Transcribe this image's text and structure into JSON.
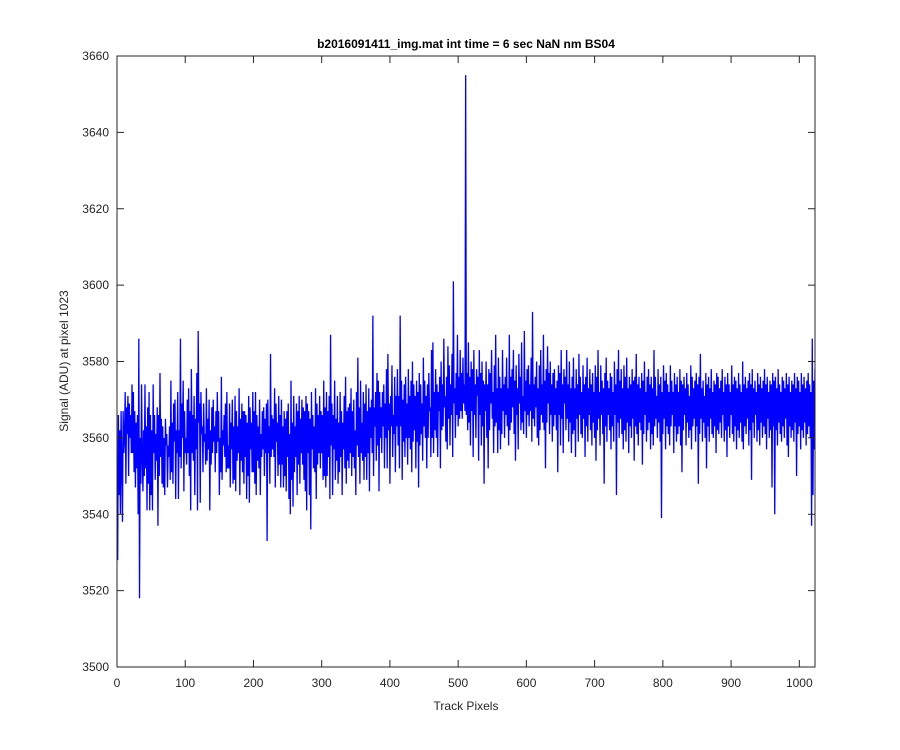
{
  "chart_data": {
    "type": "line",
    "title": "b2016091411_img.mat int time = 6 sec  NaN nm BS04",
    "xlabel": "Track Pixels",
    "ylabel": "Signal (ADU) at pixel 1023",
    "xlim": [
      0,
      1023
    ],
    "ylim": [
      3500,
      3660
    ],
    "xticks": [
      0,
      100,
      200,
      300,
      400,
      500,
      600,
      700,
      800,
      900,
      1000
    ],
    "yticks": [
      3500,
      3520,
      3540,
      3560,
      3580,
      3600,
      3620,
      3640,
      3660
    ],
    "grid": false,
    "line_color": "#0000ff",
    "series": [
      {
        "name": "",
        "x_start": 1,
        "x_step": 1,
        "y": [
          3528,
          3566,
          3545,
          3562,
          3540,
          3567,
          3553,
          3538,
          3567,
          3556,
          3560,
          3572,
          3548,
          3568,
          3561,
          3571,
          3550,
          3569,
          3560,
          3566,
          3556,
          3574,
          3556,
          3572,
          3551,
          3567,
          3547,
          3564,
          3552,
          3566,
          3540,
          3586,
          3518,
          3560,
          3548,
          3574,
          3555,
          3546,
          3562,
          3550,
          3574,
          3552,
          3563,
          3541,
          3568,
          3548,
          3572,
          3541,
          3566,
          3545,
          3562,
          3541,
          3574,
          3556,
          3566,
          3549,
          3561,
          3554,
          3568,
          3537,
          3566,
          3550,
          3577,
          3555,
          3565,
          3548,
          3563,
          3547,
          3560,
          3545,
          3565,
          3558,
          3561,
          3547,
          3558,
          3555,
          3563,
          3549,
          3575,
          3551,
          3564,
          3548,
          3569,
          3559,
          3570,
          3544,
          3562,
          3556,
          3572,
          3544,
          3562,
          3555,
          3586,
          3552,
          3569,
          3560,
          3575,
          3546,
          3567,
          3556,
          3560,
          3553,
          3570,
          3556,
          3573,
          3550,
          3567,
          3541,
          3578,
          3556,
          3566,
          3554,
          3571,
          3545,
          3565,
          3557,
          3577,
          3541,
          3588,
          3564,
          3569,
          3543,
          3572,
          3561,
          3563,
          3551,
          3569,
          3559,
          3561,
          3553,
          3573,
          3554,
          3565,
          3557,
          3570,
          3541,
          3562,
          3553,
          3568,
          3556,
          3570,
          3559,
          3563,
          3551,
          3567,
          3556,
          3572,
          3559,
          3567,
          3545,
          3560,
          3551,
          3576,
          3549,
          3562,
          3558,
          3566,
          3555,
          3569,
          3551,
          3572,
          3552,
          3558,
          3552,
          3569,
          3547,
          3564,
          3557,
          3570,
          3548,
          3563,
          3549,
          3571,
          3546,
          3567,
          3554,
          3563,
          3556,
          3573,
          3545,
          3565,
          3554,
          3569,
          3551,
          3567,
          3548,
          3567,
          3555,
          3566,
          3544,
          3564,
          3550,
          3571,
          3543,
          3568,
          3557,
          3564,
          3551,
          3572,
          3551,
          3567,
          3548,
          3572,
          3545,
          3566,
          3554,
          3563,
          3552,
          3570,
          3545,
          3561,
          3555,
          3567,
          3557,
          3568,
          3550,
          3565,
          3556,
          3569,
          3533,
          3570,
          3556,
          3563,
          3548,
          3582,
          3555,
          3566,
          3557,
          3565,
          3555,
          3573,
          3547,
          3569,
          3559,
          3564,
          3550,
          3571,
          3553,
          3566,
          3547,
          3570,
          3553,
          3563,
          3547,
          3567,
          3550,
          3565,
          3546,
          3567,
          3555,
          3569,
          3544,
          3561,
          3540,
          3575,
          3549,
          3564,
          3542,
          3571,
          3551,
          3563,
          3555,
          3569,
          3545,
          3567,
          3553,
          3571,
          3548,
          3565,
          3556,
          3570,
          3553,
          3568,
          3549,
          3567,
          3546,
          3571,
          3541,
          3569,
          3556,
          3567,
          3545,
          3565,
          3536,
          3572,
          3557,
          3566,
          3552,
          3563,
          3551,
          3573,
          3544,
          3569,
          3553,
          3566,
          3556,
          3571,
          3552,
          3567,
          3556,
          3566,
          3549,
          3575,
          3550,
          3568,
          3547,
          3572,
          3550,
          3567,
          3555,
          3571,
          3544,
          3587,
          3558,
          3569,
          3545,
          3566,
          3557,
          3575,
          3549,
          3565,
          3554,
          3571,
          3548,
          3564,
          3551,
          3572,
          3555,
          3567,
          3545,
          3564,
          3557,
          3571,
          3552,
          3576,
          3548,
          3567,
          3554,
          3568,
          3552,
          3569,
          3556,
          3573,
          3550,
          3567,
          3555,
          3570,
          3552,
          3562,
          3545,
          3572,
          3558,
          3581,
          3555,
          3568,
          3548,
          3575,
          3556,
          3564,
          3554,
          3572,
          3549,
          3569,
          3555,
          3574,
          3549,
          3567,
          3556,
          3573,
          3546,
          3568,
          3560,
          3570,
          3556,
          3592,
          3550,
          3568,
          3563,
          3572,
          3554,
          3577,
          3558,
          3575,
          3546,
          3572,
          3560,
          3568,
          3556,
          3572,
          3563,
          3574,
          3552,
          3569,
          3560,
          3578,
          3552,
          3582,
          3562,
          3569,
          3548,
          3571,
          3563,
          3579,
          3555,
          3566,
          3561,
          3576,
          3551,
          3571,
          3563,
          3578,
          3558,
          3571,
          3552,
          3592,
          3563,
          3575,
          3549,
          3570,
          3559,
          3574,
          3555,
          3576,
          3560,
          3569,
          3553,
          3578,
          3560,
          3571,
          3557,
          3575,
          3551,
          3580,
          3559,
          3574,
          3562,
          3571,
          3552,
          3575,
          3559,
          3572,
          3547,
          3577,
          3558,
          3574,
          3561,
          3569,
          3554,
          3581,
          3563,
          3575,
          3560,
          3571,
          3552,
          3574,
          3560,
          3577,
          3567,
          3568,
          3555,
          3583,
          3560,
          3585,
          3556,
          3572,
          3562,
          3578,
          3560,
          3574,
          3555,
          3572,
          3567,
          3576,
          3552,
          3580,
          3562,
          3574,
          3563,
          3586,
          3568,
          3571,
          3559,
          3576,
          3557,
          3584,
          3565,
          3579,
          3558,
          3574,
          3566,
          3582,
          3555,
          3601,
          3569,
          3573,
          3560,
          3577,
          3566,
          3587,
          3563,
          3576,
          3565,
          3583,
          3567,
          3577,
          3565,
          3581,
          3569,
          3574,
          3567,
          3655,
          3566,
          3577,
          3562,
          3585,
          3564,
          3576,
          3558,
          3580,
          3567,
          3578,
          3555,
          3583,
          3566,
          3574,
          3560,
          3578,
          3571,
          3576,
          3554,
          3583,
          3566,
          3577,
          3558,
          3580,
          3563,
          3575,
          3548,
          3574,
          3567,
          3580,
          3560,
          3574,
          3552,
          3578,
          3562,
          3577,
          3569,
          3583,
          3565,
          3572,
          3556,
          3579,
          3563,
          3587,
          3564,
          3573,
          3556,
          3581,
          3562,
          3576,
          3557,
          3573,
          3561,
          3583,
          3567,
          3574,
          3560,
          3576,
          3566,
          3581,
          3563,
          3573,
          3558,
          3587,
          3562,
          3576,
          3564,
          3578,
          3568,
          3583,
          3561,
          3575,
          3554,
          3579,
          3566,
          3573,
          3557,
          3582,
          3569,
          3576,
          3562,
          3585,
          3564,
          3571,
          3561,
          3588,
          3567,
          3575,
          3560,
          3578,
          3566,
          3579,
          3563,
          3574,
          3567,
          3581,
          3559,
          3593,
          3565,
          3574,
          3563,
          3576,
          3568,
          3580,
          3560,
          3573,
          3558,
          3579,
          3562,
          3583,
          3566,
          3574,
          3564,
          3587,
          3562,
          3575,
          3552,
          3578,
          3564,
          3584,
          3569,
          3577,
          3561,
          3580,
          3566,
          3574,
          3559,
          3577,
          3563,
          3578,
          3566,
          3573,
          3562,
          3575,
          3551,
          3579,
          3566,
          3577,
          3558,
          3583,
          3565,
          3574,
          3556,
          3578,
          3569,
          3576,
          3562,
          3583,
          3565,
          3574,
          3559,
          3580,
          3564,
          3573,
          3556,
          3576,
          3561,
          3581,
          3562,
          3573,
          3555,
          3578,
          3565,
          3574,
          3559,
          3582,
          3566,
          3576,
          3561,
          3572,
          3560,
          3579,
          3565,
          3574,
          3555,
          3576,
          3563,
          3581,
          3559,
          3573,
          3566,
          3578,
          3562,
          3574,
          3558,
          3577,
          3564,
          3572,
          3560,
          3579,
          3554,
          3576,
          3562,
          3583,
          3565,
          3572,
          3558,
          3579,
          3566,
          3575,
          3561,
          3573,
          3548,
          3577,
          3563,
          3581,
          3559,
          3575,
          3566,
          3573,
          3562,
          3577,
          3557,
          3576,
          3563,
          3572,
          3559,
          3580,
          3566,
          3574,
          3545,
          3578,
          3564,
          3583,
          3560,
          3575,
          3565,
          3578,
          3561,
          3573,
          3557,
          3579,
          3562,
          3576,
          3559,
          3581,
          3564,
          3573,
          3556,
          3576,
          3563,
          3574,
          3560,
          3578,
          3565,
          3575,
          3554,
          3576,
          3563,
          3582,
          3561,
          3574,
          3558,
          3576,
          3564,
          3573,
          3562,
          3577,
          3553,
          3575,
          3561,
          3580,
          3566,
          3572,
          3559,
          3576,
          3562,
          3578,
          3564,
          3574,
          3557,
          3576,
          3561,
          3573,
          3558,
          3583,
          3563,
          3576,
          3565,
          3571,
          3560,
          3578,
          3564,
          3574,
          3559,
          3576,
          3539,
          3572,
          3561,
          3579,
          3565,
          3575,
          3557,
          3577,
          3563,
          3574,
          3561,
          3572,
          3558,
          3579,
          3563,
          3575,
          3566,
          3572,
          3556,
          3577,
          3563,
          3574,
          3559,
          3576,
          3561,
          3572,
          3563,
          3578,
          3558,
          3575,
          3551,
          3574,
          3562,
          3576,
          3566,
          3573,
          3558,
          3577,
          3564,
          3574,
          3560,
          3571,
          3562,
          3579,
          3557,
          3576,
          3563,
          3573,
          3565,
          3575,
          3559,
          3577,
          3563,
          3574,
          3548,
          3576,
          3561,
          3582,
          3565,
          3573,
          3559,
          3575,
          3564,
          3571,
          3560,
          3577,
          3552,
          3574,
          3563,
          3576,
          3559,
          3573,
          3565,
          3578,
          3561,
          3572,
          3560,
          3575,
          3563,
          3574,
          3556,
          3577,
          3562,
          3576,
          3561,
          3573,
          3564,
          3575,
          3560,
          3578,
          3566,
          3572,
          3559,
          3576,
          3562,
          3574,
          3555,
          3577,
          3563,
          3574,
          3560,
          3572,
          3566,
          3579,
          3561,
          3574,
          3559,
          3576,
          3563,
          3575,
          3557,
          3573,
          3562,
          3577,
          3560,
          3574,
          3564,
          3572,
          3559,
          3580,
          3557,
          3574,
          3563,
          3576,
          3561,
          3573,
          3565,
          3575,
          3558,
          3577,
          3562,
          3574,
          3549,
          3578,
          3564,
          3573,
          3560,
          3575,
          3566,
          3572,
          3559,
          3577,
          3562,
          3574,
          3558,
          3576,
          3564,
          3573,
          3560,
          3575,
          3563,
          3578,
          3561,
          3574,
          3557,
          3576,
          3565,
          3572,
          3560,
          3575,
          3562,
          3574,
          3547,
          3577,
          3563,
          3575,
          3540,
          3576,
          3562,
          3573,
          3558,
          3578,
          3564,
          3574,
          3561,
          3572,
          3559,
          3576,
          3563,
          3575,
          3560,
          3573,
          3565,
          3577,
          3558,
          3574,
          3555,
          3576,
          3563,
          3572,
          3560,
          3575,
          3562,
          3574,
          3559,
          3577,
          3564,
          3573,
          3550,
          3576,
          3561,
          3575,
          3563,
          3572,
          3557,
          3577,
          3562,
          3574,
          3560,
          3576,
          3564,
          3573,
          3558,
          3575,
          3561,
          3577,
          3563,
          3574,
          3560,
          3572,
          3537,
          3586,
          3545,
          3575,
          3557,
          3578
        ]
      }
    ]
  }
}
